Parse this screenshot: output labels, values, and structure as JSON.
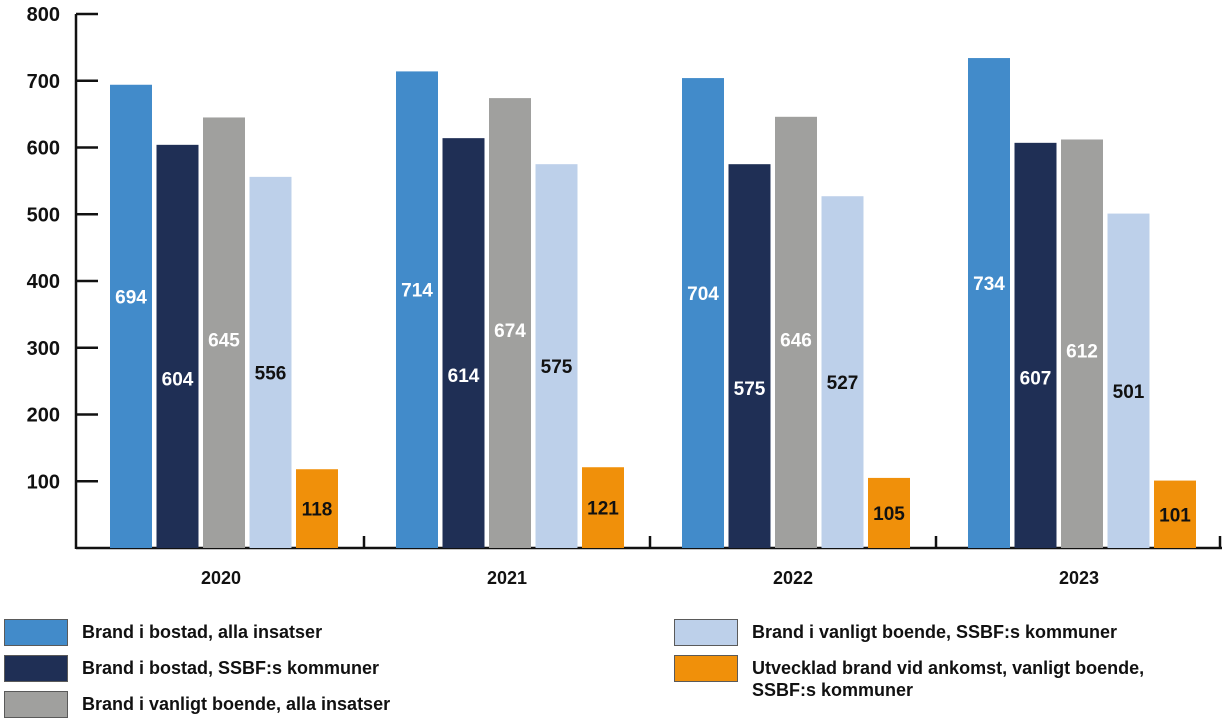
{
  "chart_data": {
    "type": "bar",
    "categories": [
      "2020",
      "2021",
      "2022",
      "2023"
    ],
    "ylim": [
      0,
      800
    ],
    "yticks": [
      100,
      200,
      300,
      400,
      500,
      600,
      700,
      800
    ],
    "grid": false,
    "legend_position": "bottom",
    "series": [
      {
        "name": "Brand i bostad, alla insatser",
        "color": "#428bca",
        "label_color": "#ffffff",
        "values": [
          694,
          714,
          704,
          734
        ]
      },
      {
        "name": "Brand i bostad, SSBF:s kommuner",
        "color": "#1f2f55",
        "label_color": "#ffffff",
        "values": [
          604,
          614,
          575,
          607
        ]
      },
      {
        "name": "Brand i vanligt boende, alla insatser",
        "color": "#a0a09e",
        "label_color": "#ffffff",
        "values": [
          645,
          674,
          646,
          612
        ]
      },
      {
        "name": "Brand i vanligt boende, SSBF:s kommuner",
        "color": "#bdd0ea",
        "label_color": "#111111",
        "values": [
          556,
          575,
          527,
          501
        ]
      },
      {
        "name": "Utvecklad brand vid ankomst, vanligt boende, SSBF:s kommuner",
        "color": "#f0900a",
        "label_color": "#111111",
        "values": [
          118,
          121,
          105,
          101
        ]
      }
    ]
  },
  "legend": [
    {
      "label": "Brand i bostad, alla insatser"
    },
    {
      "label": "Brand i bostad, SSBF:s kommuner"
    },
    {
      "label": "Brand i vanligt boende, alla insatser"
    },
    {
      "label": "Brand i vanligt boende, SSBF:s kommuner"
    },
    {
      "label": "Utvecklad brand vid ankomst, vanligt boende,\nSSBF:s kommuner"
    }
  ]
}
